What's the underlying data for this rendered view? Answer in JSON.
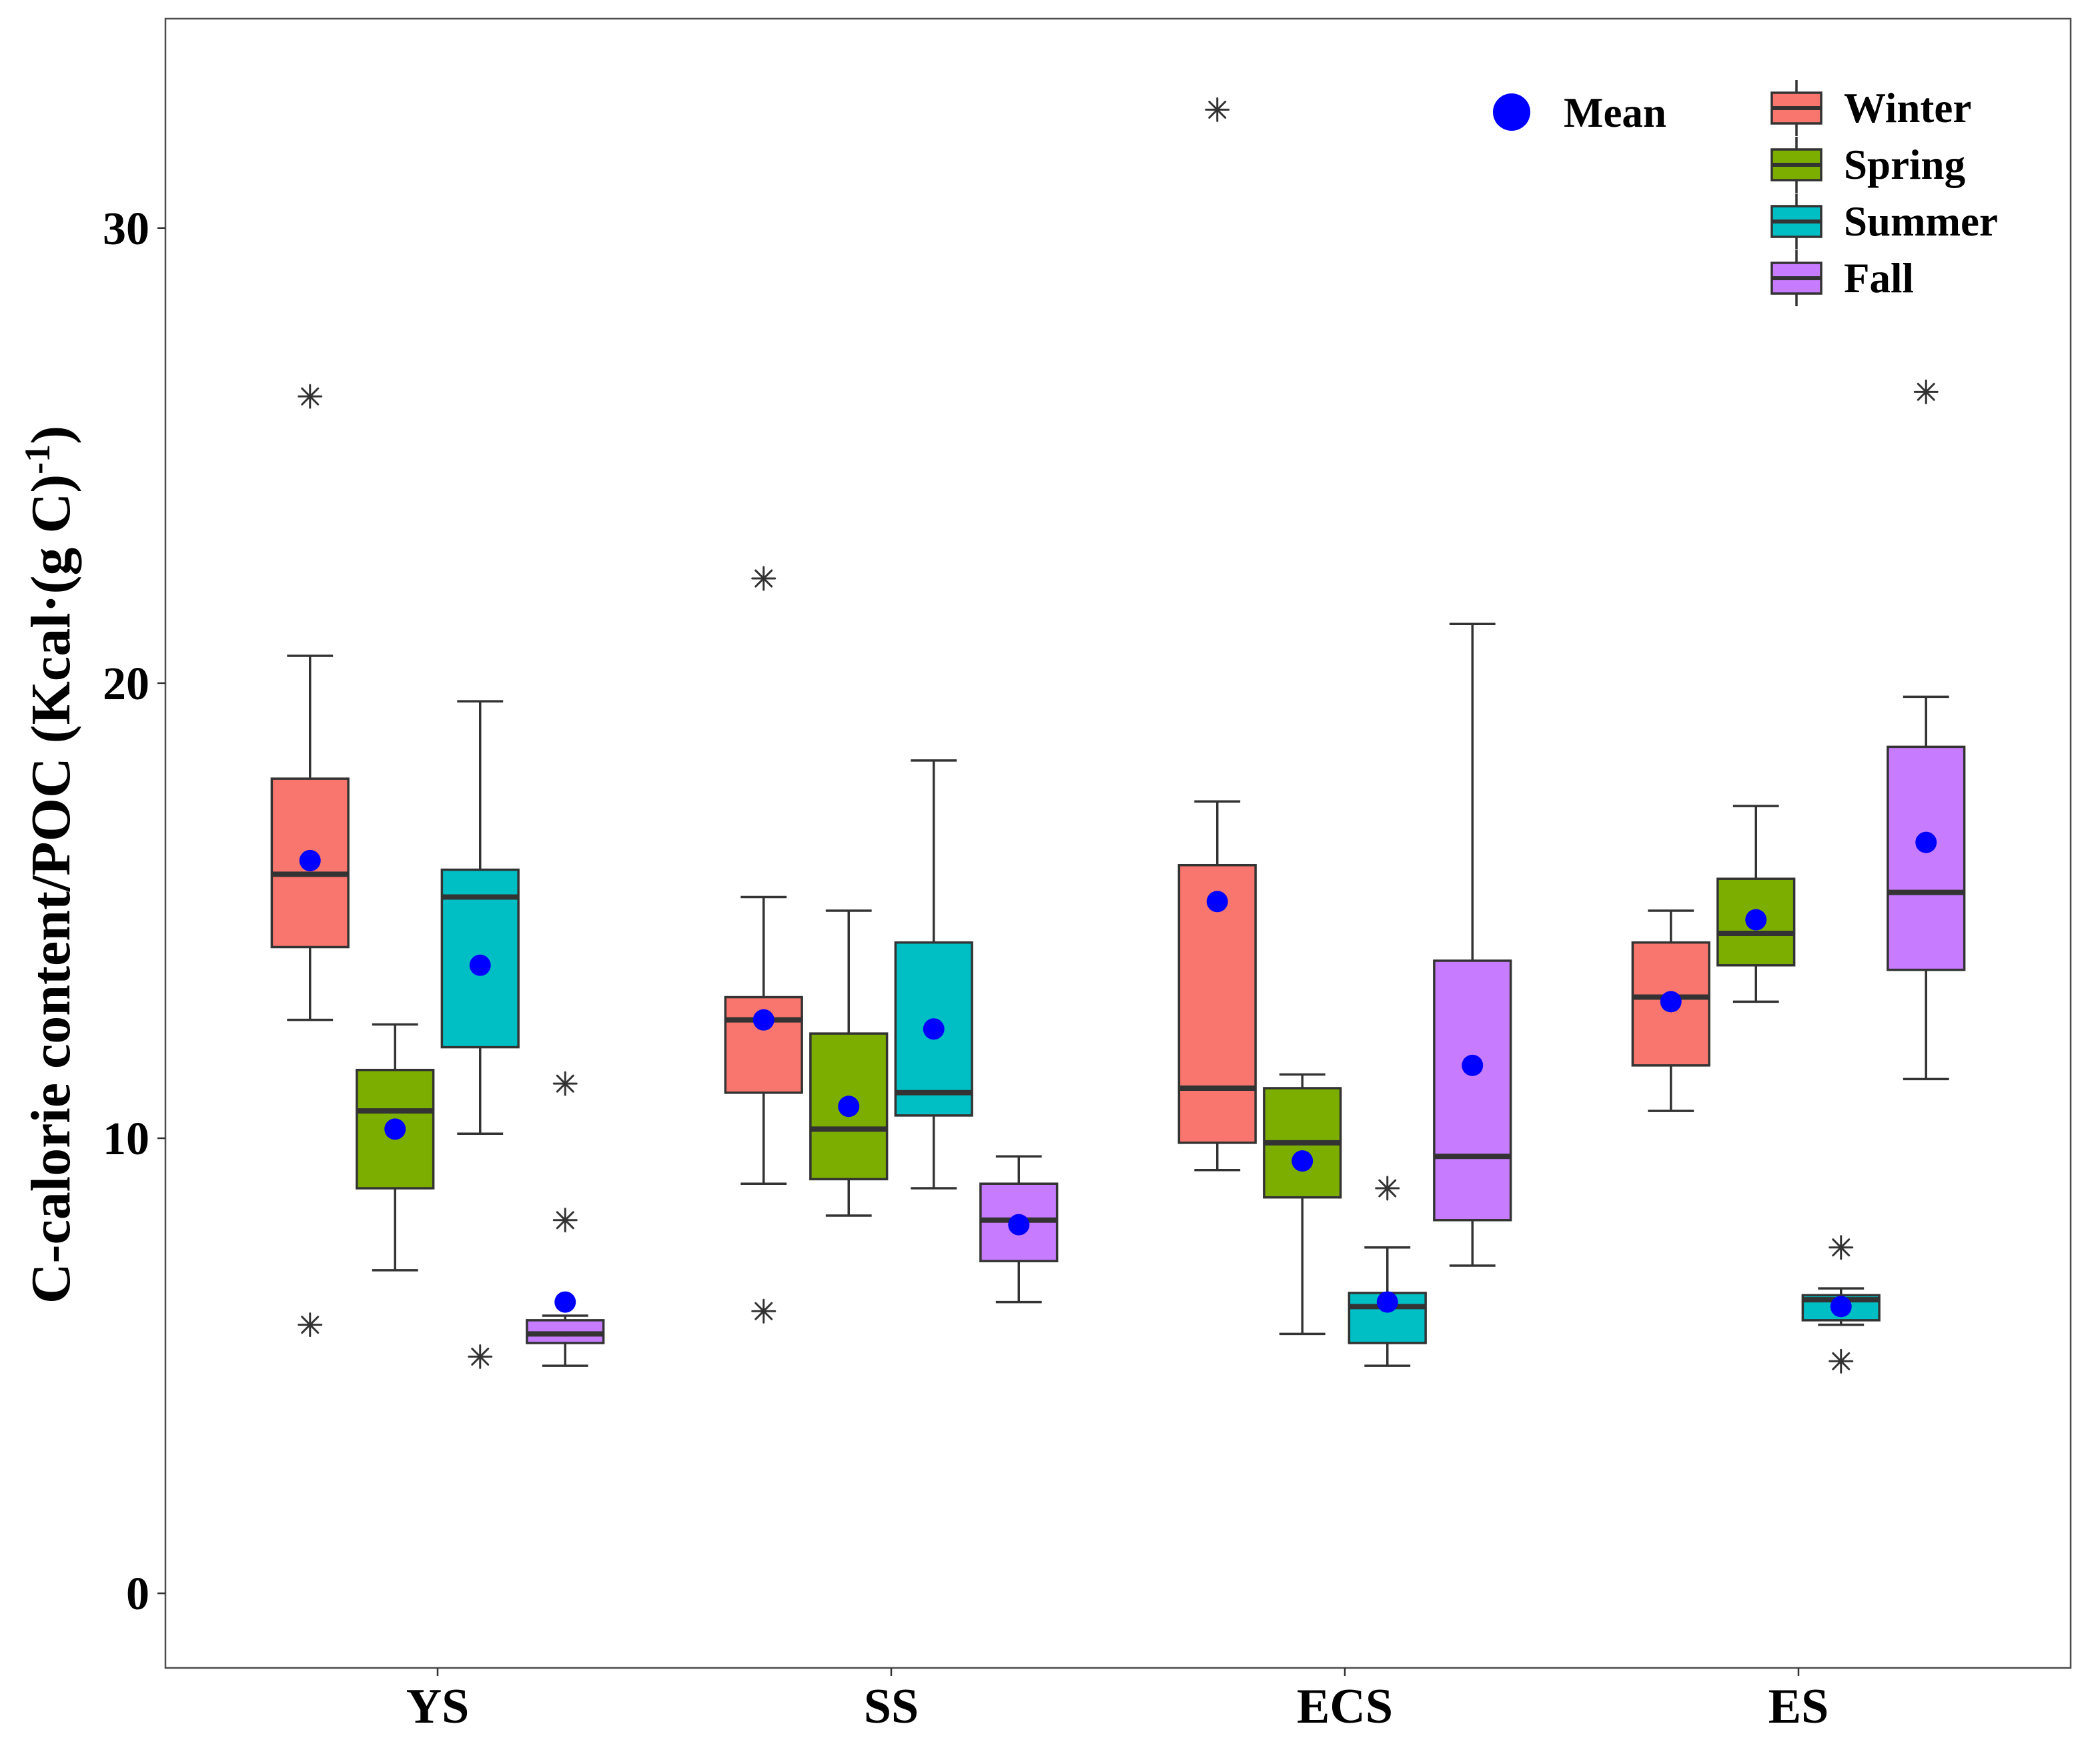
{
  "chart_data": {
    "type": "box",
    "ylabel": {
      "text": "C-calorie content/POC (Kcal·(g C)",
      "superscript": "-1",
      "suffix": ")"
    },
    "categories": [
      "YS",
      "SS",
      "ECS",
      "ES"
    ],
    "ylim": [
      -1.64,
      34.6
    ],
    "yticks": [
      0,
      10,
      20,
      30
    ],
    "ytick_labels": [
      "0",
      "10",
      "20",
      "30"
    ],
    "grid": false,
    "legend": {
      "position": "top-right"
    },
    "mean_marker": {
      "label": "Mean",
      "color": "#0000FF"
    },
    "series": [
      {
        "name": "Winter",
        "color": "#F8766D",
        "boxes": [
          {
            "lower_whisker": 12.6,
            "q1": 14.2,
            "median": 15.8,
            "q3": 17.9,
            "upper_whisker": 20.6,
            "mean": 16.1,
            "outliers": [
              26.3,
              5.9
            ]
          },
          {
            "lower_whisker": 9.0,
            "q1": 11.0,
            "median": 12.6,
            "q3": 13.1,
            "upper_whisker": 15.3,
            "mean": 12.6,
            "outliers": [
              22.3,
              6.2
            ]
          },
          {
            "lower_whisker": 9.3,
            "q1": 9.9,
            "median": 11.1,
            "q3": 16.0,
            "upper_whisker": 17.4,
            "mean": 15.2,
            "outliers": [
              32.6
            ]
          },
          {
            "lower_whisker": 10.6,
            "q1": 11.6,
            "median": 13.1,
            "q3": 14.3,
            "upper_whisker": 15.0,
            "mean": 13.0,
            "outliers": []
          }
        ]
      },
      {
        "name": "Spring",
        "color": "#7CAE00",
        "boxes": [
          {
            "lower_whisker": 7.1,
            "q1": 8.9,
            "median": 10.6,
            "q3": 11.5,
            "upper_whisker": 12.5,
            "mean": 10.2,
            "outliers": []
          },
          {
            "lower_whisker": 8.3,
            "q1": 9.1,
            "median": 10.2,
            "q3": 12.3,
            "upper_whisker": 15.0,
            "mean": 10.7,
            "outliers": []
          },
          {
            "lower_whisker": 5.7,
            "q1": 8.7,
            "median": 9.9,
            "q3": 11.1,
            "upper_whisker": 11.4,
            "mean": 9.5,
            "outliers": []
          },
          {
            "lower_whisker": 13.0,
            "q1": 13.8,
            "median": 14.5,
            "q3": 15.7,
            "upper_whisker": 17.3,
            "mean": 14.8,
            "outliers": []
          }
        ]
      },
      {
        "name": "Summer",
        "color": "#00BFC4",
        "boxes": [
          {
            "lower_whisker": 10.1,
            "q1": 12.0,
            "median": 15.3,
            "q3": 15.9,
            "upper_whisker": 19.6,
            "mean": 13.8,
            "outliers": [
              5.2
            ]
          },
          {
            "lower_whisker": 8.9,
            "q1": 10.5,
            "median": 11.0,
            "q3": 14.3,
            "upper_whisker": 18.3,
            "mean": 12.4,
            "outliers": []
          },
          {
            "lower_whisker": 5.0,
            "q1": 5.5,
            "median": 6.3,
            "q3": 6.6,
            "upper_whisker": 7.6,
            "mean": 6.4,
            "outliers": [
              8.9
            ]
          },
          {
            "lower_whisker": 5.9,
            "q1": 6.0,
            "median": 6.45,
            "q3": 6.55,
            "upper_whisker": 6.7,
            "mean": 6.3,
            "outliers": [
              7.6,
              5.1
            ]
          }
        ]
      },
      {
        "name": "Fall",
        "color": "#C77CFF",
        "boxes": [
          {
            "lower_whisker": 5.0,
            "q1": 5.5,
            "median": 5.7,
            "q3": 6.0,
            "upper_whisker": 6.1,
            "mean": 6.4,
            "outliers": [
              11.2,
              8.2
            ]
          },
          {
            "lower_whisker": 6.4,
            "q1": 7.3,
            "median": 8.2,
            "q3": 9.0,
            "upper_whisker": 9.6,
            "mean": 8.1,
            "outliers": []
          },
          {
            "lower_whisker": 7.2,
            "q1": 8.2,
            "median": 9.6,
            "q3": 13.9,
            "upper_whisker": 21.3,
            "mean": 11.6,
            "outliers": []
          },
          {
            "lower_whisker": 11.3,
            "q1": 13.7,
            "median": 15.4,
            "q3": 18.6,
            "upper_whisker": 19.7,
            "mean": 16.5,
            "outliers": [
              26.4
            ]
          }
        ]
      }
    ]
  }
}
